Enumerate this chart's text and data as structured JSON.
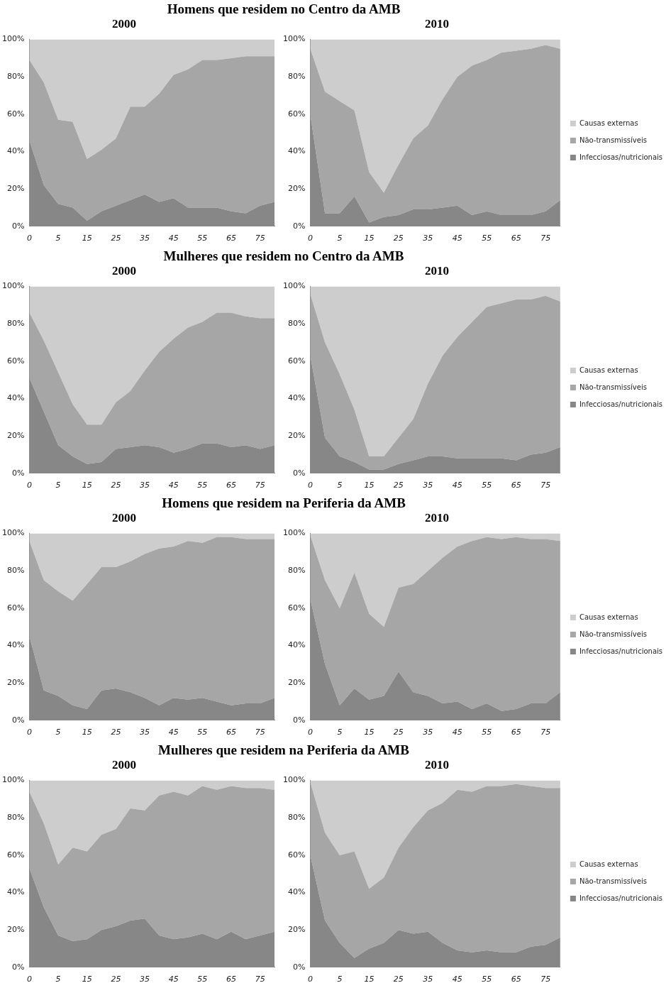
{
  "chart_data": [
    {
      "type": "area",
      "title": "2000",
      "annotations": [
        "Homens que residem no Centro da AMB"
      ],
      "stacked": true,
      "categories": [
        "0",
        null,
        "5",
        null,
        "15",
        null,
        "25",
        null,
        "35",
        null,
        "45",
        null,
        "55",
        null,
        "65",
        null,
        "75",
        null
      ],
      "ylim": [
        0,
        100
      ],
      "yticks": [
        {
          "value": 0,
          "label": "0%"
        },
        {
          "value": 20,
          "label": "20%"
        },
        {
          "value": 40,
          "label": "40%"
        },
        {
          "value": 60,
          "label": "60%"
        },
        {
          "value": 80,
          "label": "80%"
        },
        {
          "value": 100,
          "label": "100%"
        }
      ],
      "marker": "none",
      "legend": false,
      "series": [
        {
          "color": "#878787",
          "values": [
            46,
            22,
            12,
            10,
            3,
            8,
            11,
            14,
            17,
            13,
            15,
            10,
            10,
            10,
            8,
            7,
            11,
            13
          ]
        },
        {
          "color": "#a6a6a6",
          "values": [
            43,
            55,
            45,
            46,
            33,
            33,
            36,
            50,
            47,
            58,
            66,
            74,
            79,
            79,
            82,
            84,
            80,
            78
          ]
        },
        {
          "color": "#cdcdcd",
          "values": [
            11,
            23,
            43,
            44,
            64,
            59,
            53,
            36,
            36,
            29,
            19,
            16,
            11,
            11,
            10,
            9,
            9,
            9
          ]
        }
      ]
    },
    {
      "type": "area",
      "title": "2010",
      "stacked": true,
      "categories": [
        "0",
        null,
        "5",
        null,
        "15",
        null,
        "25",
        null,
        "35",
        null,
        "45",
        null,
        "55",
        null,
        "65",
        null,
        "75",
        null
      ],
      "ylim": [
        0,
        100
      ],
      "yticks": [
        {
          "value": 0,
          "label": "0%"
        },
        {
          "value": 20,
          "label": "20%"
        },
        {
          "value": 40,
          "label": "40%"
        },
        {
          "value": 60,
          "label": "60%"
        },
        {
          "value": 80,
          "label": "80%"
        },
        {
          "value": 100,
          "label": "100%"
        }
      ],
      "marker": "none",
      "legend": "right",
      "series": [
        {
          "name": "Infecciosas/nutricionais",
          "color": "#878787",
          "values": [
            60,
            7,
            7,
            16,
            2,
            5,
            6,
            9,
            9,
            10,
            11,
            6,
            8,
            6,
            6,
            6,
            8,
            14
          ]
        },
        {
          "name": "Não-transmissíveis",
          "color": "#a6a6a6",
          "values": [
            35,
            65,
            60,
            46,
            27,
            13,
            27,
            38,
            45,
            58,
            69,
            80,
            81,
            87,
            88,
            89,
            89,
            81
          ]
        },
        {
          "name": "Causas externas",
          "color": "#cdcdcd",
          "values": [
            5,
            28,
            33,
            38,
            71,
            82,
            67,
            53,
            46,
            32,
            20,
            14,
            11,
            7,
            6,
            5,
            3,
            5
          ]
        }
      ]
    },
    {
      "type": "area",
      "title": "2000",
      "annotations": [
        "Mulheres que residem no Centro da AMB"
      ],
      "stacked": true,
      "categories": [
        "0",
        null,
        "5",
        null,
        "15",
        null,
        "25",
        null,
        "35",
        null,
        "45",
        null,
        "55",
        null,
        "65",
        null,
        "75",
        null
      ],
      "ylim": [
        0,
        100
      ],
      "yticks": [
        {
          "value": 0,
          "label": "0%"
        },
        {
          "value": 20,
          "label": "20%"
        },
        {
          "value": 40,
          "label": "40%"
        },
        {
          "value": 60,
          "label": "60%"
        },
        {
          "value": 80,
          "label": "80%"
        },
        {
          "value": 100,
          "label": "100%"
        }
      ],
      "marker": "none",
      "legend": false,
      "series": [
        {
          "color": "#878787",
          "values": [
            51,
            33,
            15,
            9,
            5,
            6,
            13,
            14,
            15,
            14,
            11,
            13,
            16,
            16,
            14,
            15,
            13,
            15
          ]
        },
        {
          "color": "#a6a6a6",
          "values": [
            35,
            38,
            39,
            28,
            21,
            20,
            25,
            30,
            40,
            51,
            61,
            65,
            65,
            70,
            72,
            69,
            70,
            68
          ]
        },
        {
          "color": "#cdcdcd",
          "values": [
            14,
            29,
            46,
            63,
            74,
            74,
            62,
            56,
            45,
            35,
            28,
            22,
            19,
            14,
            14,
            16,
            17,
            17
          ]
        }
      ]
    },
    {
      "type": "area",
      "title": "2010",
      "stacked": true,
      "categories": [
        "0",
        null,
        "5",
        null,
        "15",
        null,
        "25",
        null,
        "35",
        null,
        "45",
        null,
        "55",
        null,
        "65",
        null,
        "75",
        null
      ],
      "ylim": [
        0,
        100
      ],
      "yticks": [
        {
          "value": 0,
          "label": "0%"
        },
        {
          "value": 20,
          "label": "20%"
        },
        {
          "value": 40,
          "label": "40%"
        },
        {
          "value": 60,
          "label": "60%"
        },
        {
          "value": 80,
          "label": "80%"
        },
        {
          "value": 100,
          "label": "100%"
        }
      ],
      "marker": "none",
      "legend": "right",
      "series": [
        {
          "name": "Infecciosas/nutricionais",
          "color": "#878787",
          "values": [
            63,
            19,
            9,
            6,
            2,
            2,
            5,
            7,
            9,
            9,
            8,
            8,
            8,
            8,
            7,
            10,
            11,
            14
          ]
        },
        {
          "name": "Não-transmissíveis",
          "color": "#a6a6a6",
          "values": [
            33,
            51,
            44,
            28,
            7,
            7,
            14,
            22,
            39,
            54,
            65,
            73,
            81,
            83,
            86,
            83,
            84,
            78
          ]
        },
        {
          "name": "Causas externas",
          "color": "#cdcdcd",
          "values": [
            4,
            30,
            47,
            66,
            91,
            91,
            81,
            71,
            52,
            37,
            27,
            19,
            11,
            9,
            7,
            7,
            5,
            8
          ]
        }
      ]
    },
    {
      "type": "area",
      "title": "2000",
      "annotations": [
        "Homens que residem na Periferia da AMB"
      ],
      "stacked": true,
      "categories": [
        "0",
        null,
        "5",
        null,
        "15",
        null,
        "25",
        null,
        "35",
        null,
        "45",
        null,
        "55",
        null,
        "65",
        null,
        "75",
        null
      ],
      "ylim": [
        0,
        100
      ],
      "yticks": [
        {
          "value": 0,
          "label": "0%"
        },
        {
          "value": 20,
          "label": "20%"
        },
        {
          "value": 40,
          "label": "40%"
        },
        {
          "value": 60,
          "label": "60%"
        },
        {
          "value": 80,
          "label": "80%"
        },
        {
          "value": 100,
          "label": "100%"
        }
      ],
      "marker": "none",
      "legend": false,
      "series": [
        {
          "color": "#878787",
          "values": [
            45,
            16,
            13,
            8,
            6,
            16,
            17,
            15,
            12,
            8,
            12,
            11,
            12,
            10,
            8,
            9,
            9,
            12
          ]
        },
        {
          "color": "#a6a6a6",
          "values": [
            51,
            59,
            56,
            56,
            67,
            66,
            65,
            70,
            77,
            84,
            81,
            85,
            83,
            88,
            90,
            88,
            88,
            85
          ]
        },
        {
          "color": "#cdcdcd",
          "values": [
            4,
            25,
            31,
            36,
            27,
            18,
            18,
            15,
            11,
            8,
            7,
            4,
            5,
            2,
            2,
            3,
            3,
            3
          ]
        }
      ]
    },
    {
      "type": "area",
      "title": "2010",
      "stacked": true,
      "categories": [
        "0",
        null,
        "5",
        null,
        "15",
        null,
        "25",
        null,
        "35",
        null,
        "45",
        null,
        "55",
        null,
        "65",
        null,
        "75",
        null
      ],
      "ylim": [
        0,
        100
      ],
      "yticks": [
        {
          "value": 0,
          "label": "0%"
        },
        {
          "value": 20,
          "label": "20%"
        },
        {
          "value": 40,
          "label": "40%"
        },
        {
          "value": 60,
          "label": "60%"
        },
        {
          "value": 80,
          "label": "80%"
        },
        {
          "value": 100,
          "label": "100%"
        }
      ],
      "marker": "none",
      "legend": "right",
      "series": [
        {
          "name": "Infecciosas/nutricionais",
          "color": "#878787",
          "values": [
            65,
            30,
            8,
            17,
            11,
            13,
            26,
            15,
            13,
            9,
            10,
            6,
            9,
            5,
            6,
            9,
            9,
            15
          ]
        },
        {
          "name": "Não-transmissíveis",
          "color": "#a6a6a6",
          "values": [
            34,
            45,
            52,
            62,
            46,
            37,
            45,
            58,
            67,
            78,
            83,
            90,
            89,
            92,
            92,
            88,
            88,
            81
          ]
        },
        {
          "name": "Causas externas",
          "color": "#cdcdcd",
          "values": [
            1,
            25,
            40,
            21,
            43,
            50,
            29,
            27,
            20,
            13,
            7,
            4,
            2,
            3,
            2,
            3,
            3,
            4
          ]
        }
      ]
    },
    {
      "type": "area",
      "title": "2000",
      "annotations": [
        "Mulheres que residem na Periferia da AMB"
      ],
      "stacked": true,
      "categories": [
        "0",
        null,
        "5",
        null,
        "15",
        null,
        "25",
        null,
        "35",
        null,
        "45",
        null,
        "55",
        null,
        "65",
        null,
        "75",
        null
      ],
      "ylim": [
        0,
        100
      ],
      "yticks": [
        {
          "value": 0,
          "label": "0%"
        },
        {
          "value": 20,
          "label": "20%"
        },
        {
          "value": 40,
          "label": "40%"
        },
        {
          "value": 60,
          "label": "60%"
        },
        {
          "value": 80,
          "label": "80%"
        },
        {
          "value": 100,
          "label": "100%"
        }
      ],
      "marker": "none",
      "legend": false,
      "series": [
        {
          "color": "#878787",
          "values": [
            53,
            32,
            17,
            14,
            15,
            20,
            22,
            25,
            26,
            17,
            15,
            16,
            18,
            15,
            19,
            15,
            17,
            19
          ]
        },
        {
          "color": "#a6a6a6",
          "values": [
            41,
            45,
            38,
            50,
            47,
            51,
            52,
            60,
            58,
            75,
            79,
            76,
            79,
            80,
            78,
            81,
            79,
            76
          ]
        },
        {
          "color": "#cdcdcd",
          "values": [
            6,
            23,
            45,
            36,
            38,
            29,
            26,
            15,
            16,
            8,
            6,
            8,
            3,
            5,
            3,
            4,
            4,
            5
          ]
        }
      ]
    },
    {
      "type": "area",
      "title": "2010",
      "stacked": true,
      "categories": [
        "0",
        null,
        "5",
        null,
        "15",
        null,
        "25",
        null,
        "35",
        null,
        "45",
        null,
        "55",
        null,
        "65",
        null,
        "75",
        null
      ],
      "ylim": [
        0,
        100
      ],
      "yticks": [
        {
          "value": 0,
          "label": "0%"
        },
        {
          "value": 20,
          "label": "20%"
        },
        {
          "value": 40,
          "label": "40%"
        },
        {
          "value": 60,
          "label": "60%"
        },
        {
          "value": 80,
          "label": "80%"
        },
        {
          "value": 100,
          "label": "100%"
        }
      ],
      "marker": "none",
      "legend": "right",
      "series": [
        {
          "name": "Infecciosas/nutricionais",
          "color": "#878787",
          "values": [
            60,
            25,
            13,
            5,
            10,
            13,
            20,
            18,
            19,
            13,
            9,
            8,
            9,
            8,
            8,
            11,
            12,
            16
          ]
        },
        {
          "name": "Não-transmissíveis",
          "color": "#a6a6a6",
          "values": [
            39,
            47,
            47,
            57,
            32,
            35,
            44,
            57,
            65,
            75,
            86,
            86,
            88,
            89,
            90,
            86,
            84,
            80
          ]
        },
        {
          "name": "Causas externas",
          "color": "#cdcdcd",
          "values": [
            1,
            28,
            40,
            38,
            58,
            52,
            36,
            25,
            16,
            12,
            5,
            6,
            3,
            3,
            2,
            3,
            4,
            4
          ]
        }
      ]
    }
  ]
}
